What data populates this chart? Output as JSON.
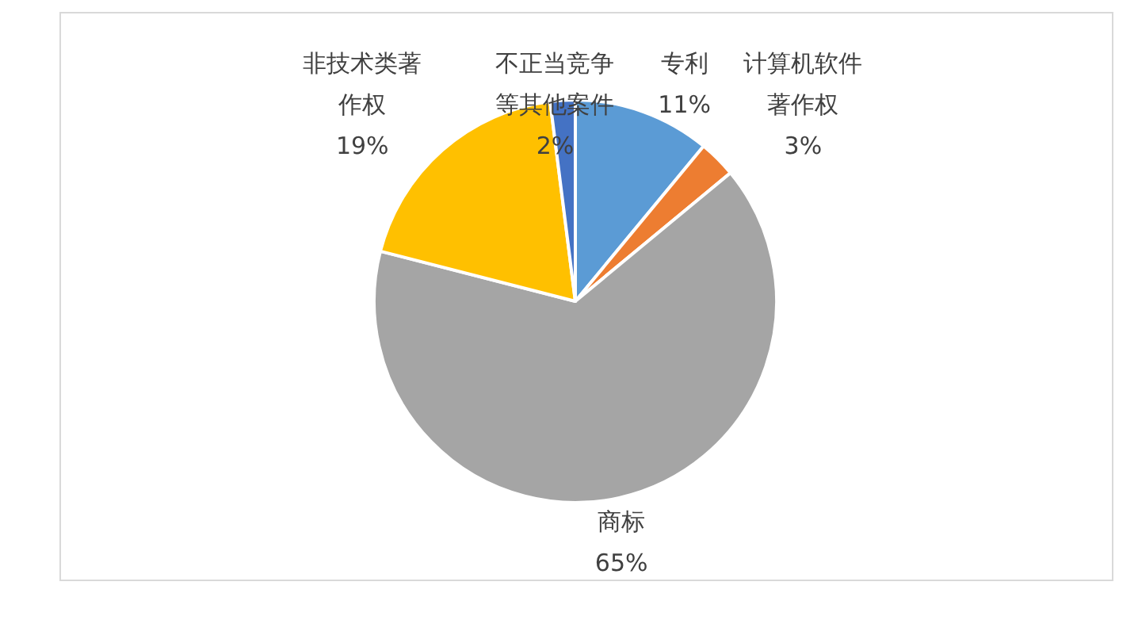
{
  "chart_data": {
    "type": "pie",
    "categories": [
      "专利",
      "计算机软件著作权",
      "商标",
      "非技术类著作权",
      "不正当竞争等其他案件"
    ],
    "values": [
      11,
      3,
      65,
      19,
      2
    ],
    "colors": [
      "#5b9bd5",
      "#ed7d31",
      "#a5a5a5",
      "#ffc000",
      "#4472c4"
    ],
    "value_labels": [
      "11%",
      "3%",
      "65%",
      "19%",
      "2%"
    ]
  }
}
